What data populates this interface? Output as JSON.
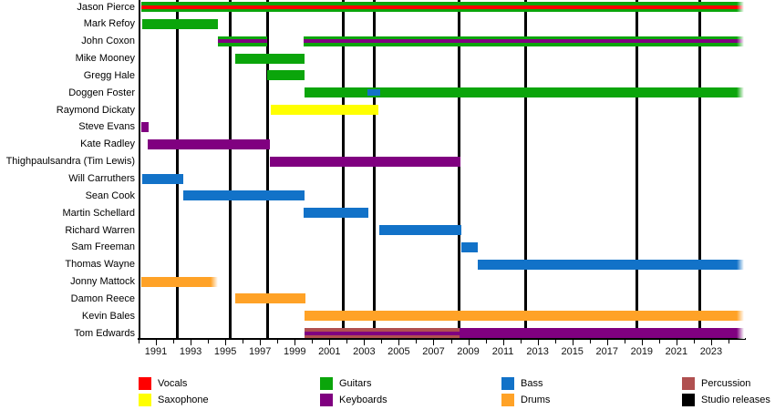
{
  "chart_data": {
    "type": "timeline",
    "x_axis": {
      "start": 1990,
      "end": 2025,
      "labeled_ticks": [
        1991,
        1993,
        1995,
        1997,
        1999,
        2001,
        2003,
        2005,
        2007,
        2009,
        2011,
        2013,
        2015,
        2017,
        2019,
        2021,
        2023
      ],
      "minor_tick_step": 1
    },
    "instrument_colors": {
      "Vocals": "#FF0000",
      "Saxophone": "#FFFF00",
      "Guitars": "#0BA50B",
      "Keyboards": "#800080",
      "Bass": "#1272C8",
      "Drums": "#FFA227",
      "Percussion": "#B05050",
      "Studio releases": "#000000"
    },
    "legend_columns": [
      [
        "Vocals",
        "Saxophone"
      ],
      [
        "Guitars",
        "Keyboards"
      ],
      [
        "Bass",
        "Drums"
      ],
      [
        "Percussion",
        "Studio releases"
      ]
    ],
    "studio_releases": [
      1992.25,
      1995.3,
      1997.45,
      2001.8,
      2003.6,
      2008.45,
      2012.3,
      2018.7,
      2022.35
    ],
    "members": [
      {
        "name": "Jason Pierce",
        "bars": [
          {
            "start": 1990.15,
            "end": 2024.9,
            "instrument": "Guitars",
            "stripe": {
              "instrument": "Vocals"
            },
            "fade_end": true
          }
        ]
      },
      {
        "name": "Mark Refoy",
        "bars": [
          {
            "start": 1990.2,
            "end": 1994.55,
            "instrument": "Guitars"
          }
        ]
      },
      {
        "name": "John Coxon",
        "bars": [
          {
            "start": 1994.55,
            "end": 1997.4,
            "instrument": "Guitars",
            "stripe": {
              "instrument": "Keyboards"
            }
          },
          {
            "start": 1999.5,
            "end": 2024.9,
            "instrument": "Guitars",
            "stripe": {
              "instrument": "Keyboards"
            },
            "fade_end": true
          }
        ]
      },
      {
        "name": "Mike Mooney",
        "bars": [
          {
            "start": 1995.55,
            "end": 1999.55,
            "instrument": "Guitars"
          }
        ]
      },
      {
        "name": "Gregg Hale",
        "bars": [
          {
            "start": 1997.4,
            "end": 1999.55,
            "instrument": "Guitars"
          }
        ]
      },
      {
        "name": "Doggen Foster",
        "bars": [
          {
            "start": 1999.55,
            "end": 2024.9,
            "instrument": "Guitars",
            "stripe": {
              "instrument": "Bass",
              "start": 2003.2,
              "end": 2003.95,
              "thick": true
            },
            "fade_end": true
          }
        ]
      },
      {
        "name": "Raymond Dickaty",
        "bars": [
          {
            "start": 1997.6,
            "end": 2003.8,
            "instrument": "Saxophone"
          }
        ]
      },
      {
        "name": "Steve Evans",
        "bars": [
          {
            "start": 1990.15,
            "end": 1990.6,
            "instrument": "Keyboards"
          }
        ]
      },
      {
        "name": "Kate Radley",
        "bars": [
          {
            "start": 1990.5,
            "end": 1997.55,
            "instrument": "Keyboards"
          }
        ]
      },
      {
        "name": "Thighpaulsandra (Tim Lewis)",
        "bars": [
          {
            "start": 1997.55,
            "end": 2008.55,
            "instrument": "Keyboards"
          }
        ]
      },
      {
        "name": "Will Carruthers",
        "bars": [
          {
            "start": 1990.2,
            "end": 1992.6,
            "instrument": "Bass"
          }
        ]
      },
      {
        "name": "Sean Cook",
        "bars": [
          {
            "start": 1992.6,
            "end": 1999.55,
            "instrument": "Bass"
          }
        ]
      },
      {
        "name": "Martin Schellard",
        "bars": [
          {
            "start": 1999.5,
            "end": 2003.25,
            "instrument": "Bass"
          }
        ]
      },
      {
        "name": "Richard Warren",
        "bars": [
          {
            "start": 2003.9,
            "end": 2008.6,
            "instrument": "Bass"
          }
        ]
      },
      {
        "name": "Sam Freeman",
        "bars": [
          {
            "start": 2008.6,
            "end": 2009.55,
            "instrument": "Bass"
          }
        ]
      },
      {
        "name": "Thomas Wayne",
        "bars": [
          {
            "start": 2009.55,
            "end": 2024.9,
            "instrument": "Bass",
            "fade_end": true
          }
        ]
      },
      {
        "name": "Jonny Mattock",
        "bars": [
          {
            "start": 1990.15,
            "end": 1994.55,
            "instrument": "Drums",
            "fade_end": true
          }
        ]
      },
      {
        "name": "Damon Reece",
        "bars": [
          {
            "start": 1995.55,
            "end": 1999.6,
            "instrument": "Drums"
          }
        ]
      },
      {
        "name": "Kevin Bales",
        "bars": [
          {
            "start": 1999.55,
            "end": 2024.9,
            "instrument": "Drums",
            "fade_end": true
          }
        ]
      },
      {
        "name": "Tom Edwards",
        "bars": [
          {
            "start": 1999.55,
            "end": 2008.5,
            "instrument": "Percussion",
            "stripe": {
              "instrument": "Keyboards"
            }
          },
          {
            "start": 2008.5,
            "end": 2024.9,
            "instrument": "Keyboards",
            "fade_end": true
          }
        ]
      }
    ]
  }
}
